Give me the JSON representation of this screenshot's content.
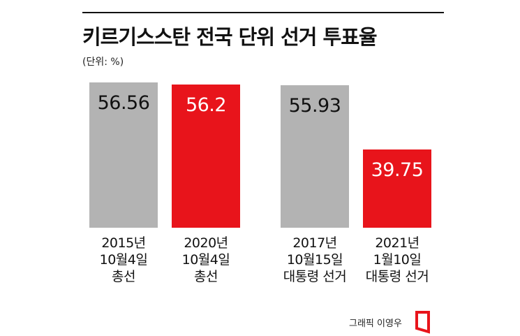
{
  "chart_data": {
    "type": "bar",
    "title": "키르기스스탄 전국 단위 선거 투표율",
    "unit": "(단위: %)",
    "categories": [
      "2015년\n10월4일\n총선",
      "2020년\n10월4일\n총선",
      "2017년\n10월15일\n대통령 선거",
      "2021년\n1월10일\n대통령 선거"
    ],
    "values": [
      56.56,
      56.2,
      55.93,
      39.75
    ],
    "colors": [
      "#b3b3b3",
      "#e8141b",
      "#b3b3b3",
      "#e8141b"
    ],
    "value_label_colors": [
      "#111111",
      "#ffffff",
      "#111111",
      "#ffffff"
    ],
    "ylim": [
      20,
      57
    ],
    "source": "그래픽 이영우"
  }
}
